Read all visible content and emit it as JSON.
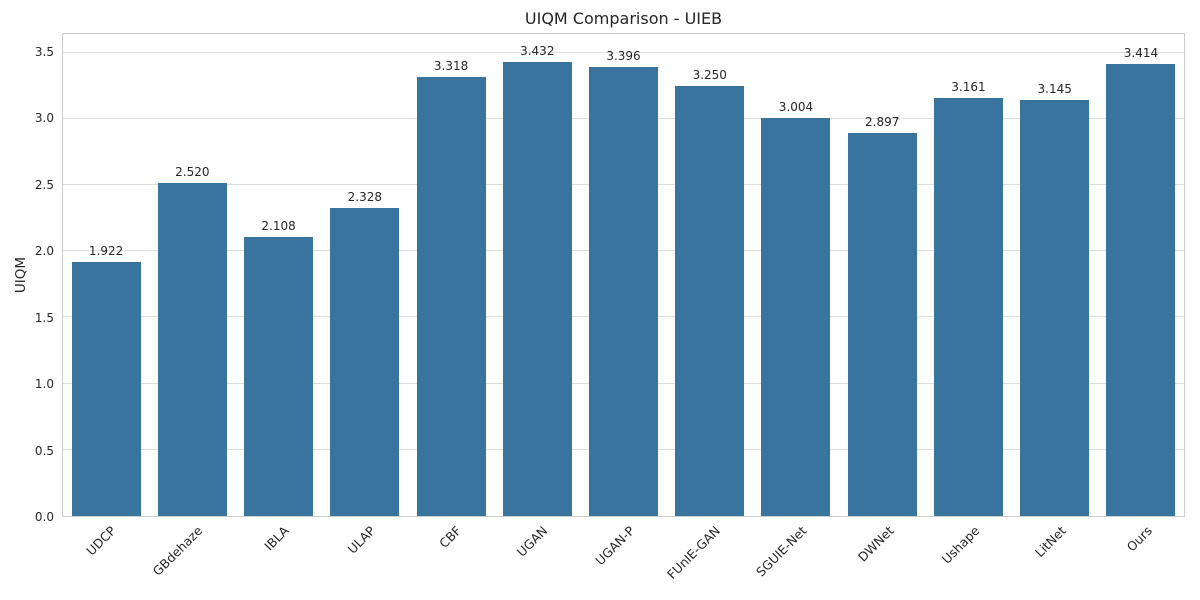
{
  "chart_data": {
    "type": "bar",
    "title": "UIQM Comparison - UIEB",
    "ylabel": "UIQM",
    "categories": [
      "UDCP",
      "GBdehaze",
      "IBLA",
      "ULAP",
      "CBF",
      "UGAN",
      "UGAN-P",
      "FUnIE-GAN",
      "SGUIE-Net",
      "DWNet",
      "Ushape",
      "LitNet",
      "Ours"
    ],
    "values": [
      1.922,
      2.52,
      2.108,
      2.328,
      3.318,
      3.432,
      3.396,
      3.25,
      3.004,
      2.897,
      3.161,
      3.145,
      3.414
    ],
    "value_labels": [
      "1.922",
      "2.520",
      "2.108",
      "2.328",
      "3.318",
      "3.432",
      "3.396",
      "3.250",
      "3.004",
      "2.897",
      "3.161",
      "3.145",
      "3.414"
    ],
    "yticks": [
      0.0,
      0.5,
      1.0,
      1.5,
      2.0,
      2.5,
      3.0,
      3.5
    ],
    "ytick_labels": [
      "0.0",
      "0.5",
      "1.0",
      "1.5",
      "2.0",
      "2.5",
      "3.0",
      "3.5"
    ],
    "ylim": [
      0,
      3.642
    ],
    "grid": true,
    "legend": null,
    "x_tick_rotation": 45,
    "bar_color": "#38749e"
  },
  "colors": {
    "bar": "#38749e",
    "grid": "#dddddd",
    "spine": "#cccccc",
    "text": "#262626",
    "background": "#ffffff"
  }
}
